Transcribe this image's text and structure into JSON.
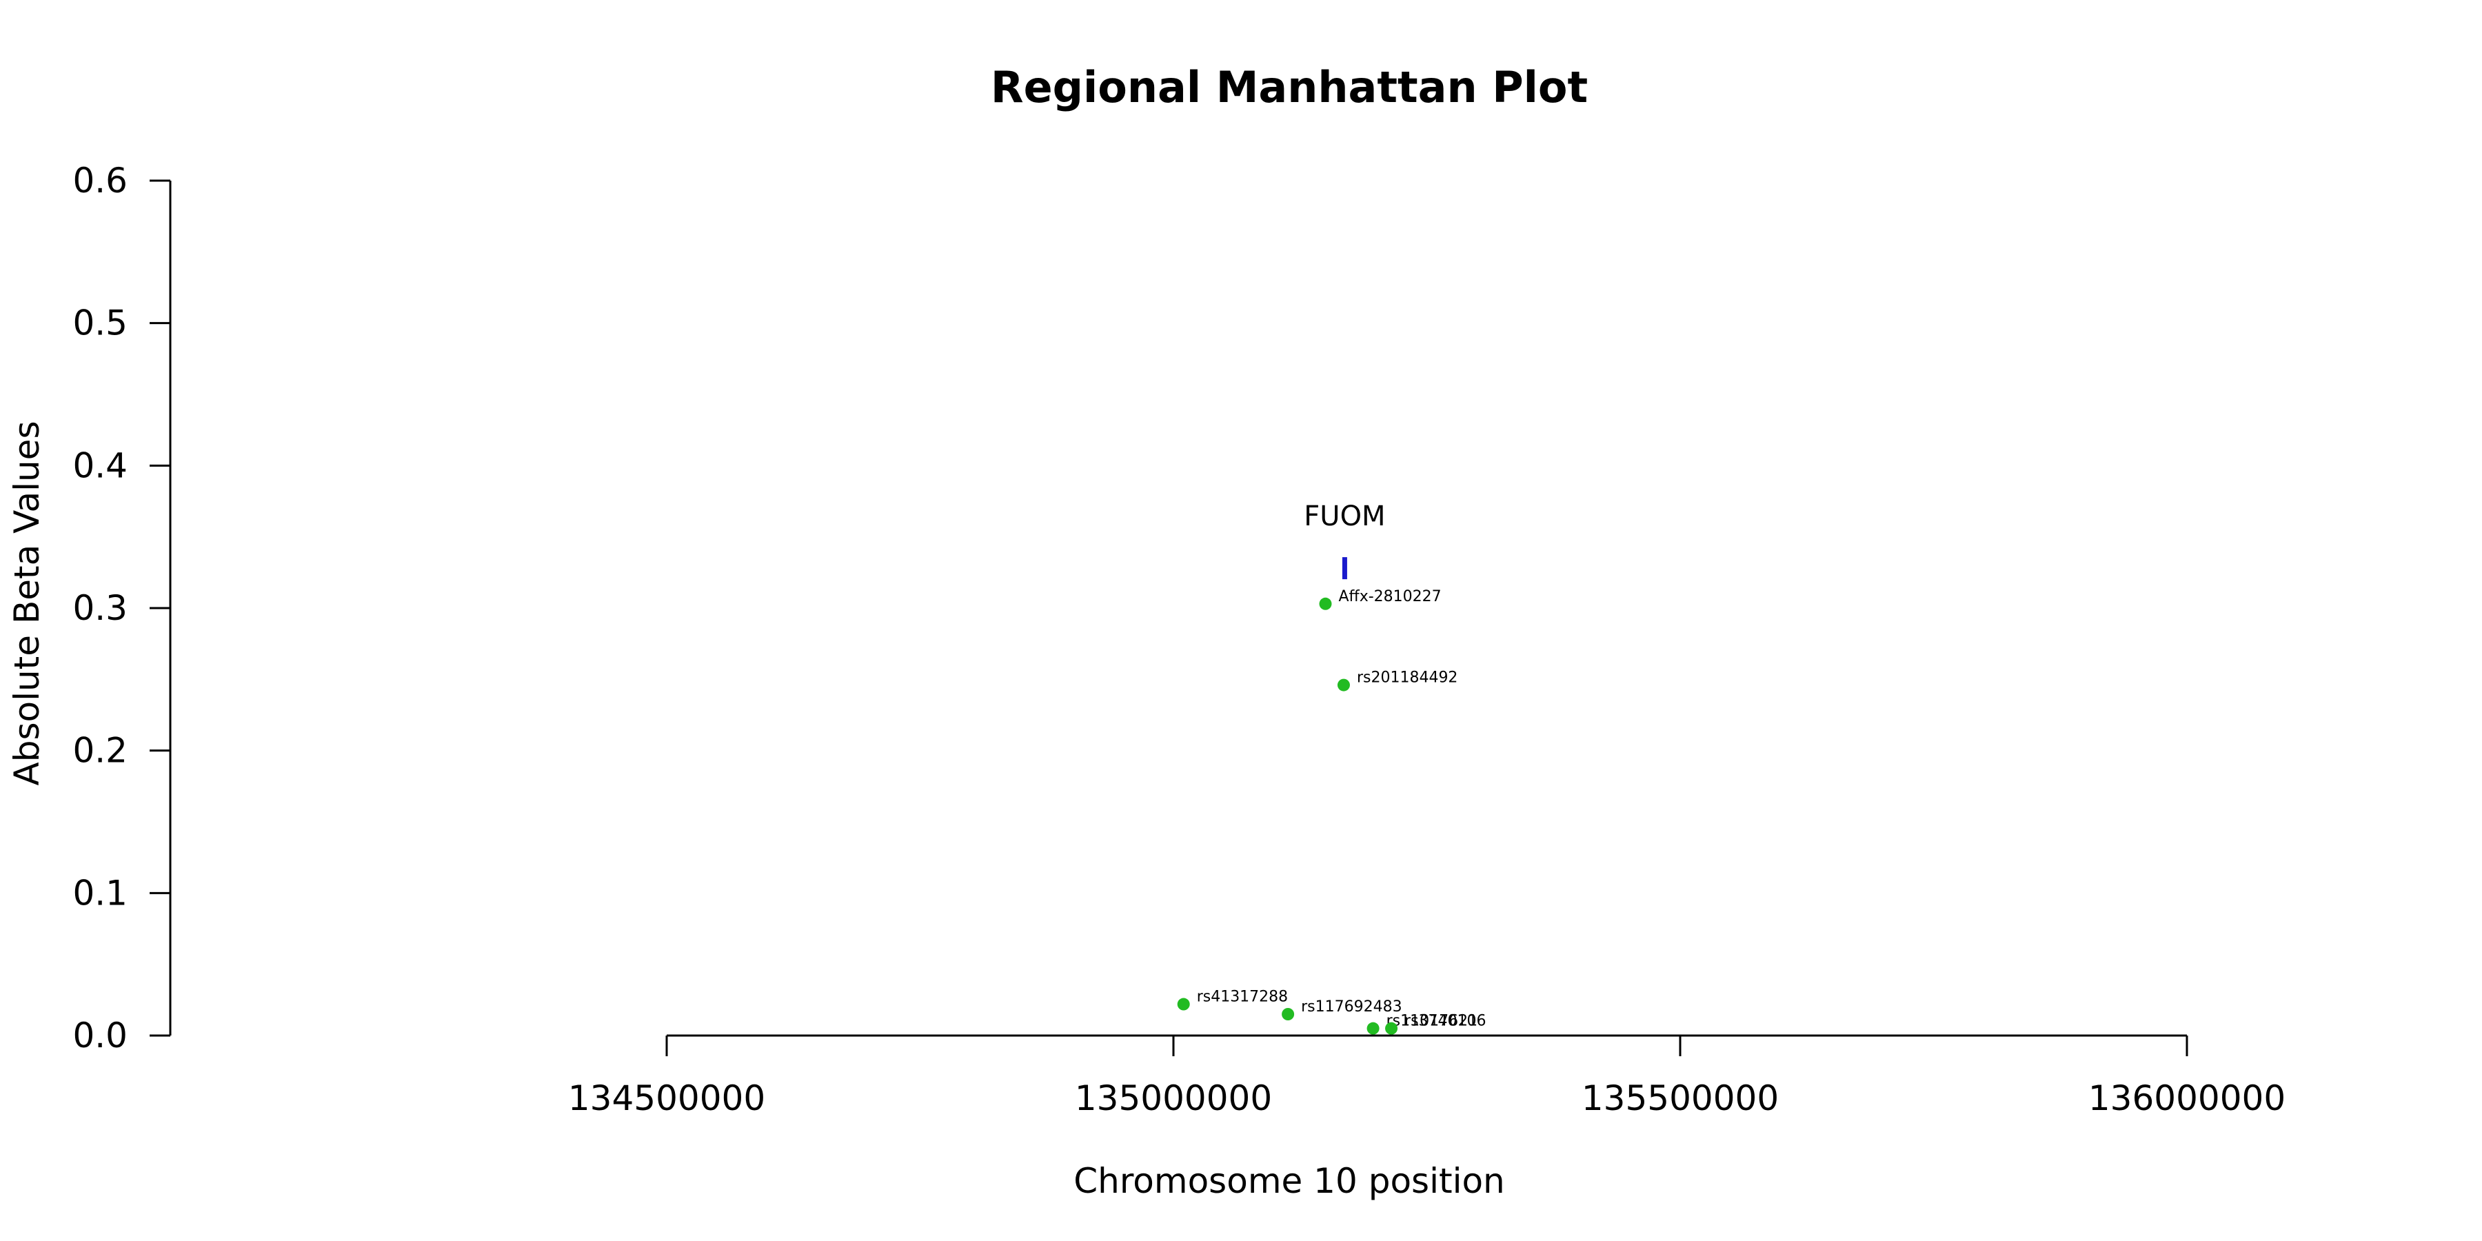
{
  "chart_data": {
    "type": "scatter",
    "title": "Regional Manhattan Plot",
    "xlabel": "Chromosome 10 position",
    "ylabel": "Absolute Beta Values",
    "xlim": [
      134500000,
      136000000
    ],
    "ylim": [
      0,
      0.6
    ],
    "x_ticks": [
      134500000,
      135000000,
      135500000,
      136000000
    ],
    "x_tick_labels": [
      "134500000",
      "135000000",
      "135500000",
      "136000000"
    ],
    "y_ticks": [
      0.0,
      0.1,
      0.2,
      0.3,
      0.4,
      0.5,
      0.6
    ],
    "y_tick_labels": [
      "0.0",
      "0.1",
      "0.2",
      "0.3",
      "0.4",
      "0.5",
      "0.6"
    ],
    "grid": false,
    "point_color": "#22bb22",
    "gene_color": "#1a1acc",
    "points": [
      {
        "label": "Affx-2810227",
        "x": 135150000,
        "y": 0.303
      },
      {
        "label": "rs201184492",
        "x": 135168000,
        "y": 0.246
      },
      {
        "label": "rs41317288",
        "x": 135010000,
        "y": 0.022
      },
      {
        "label": "rs117692483",
        "x": 135113000,
        "y": 0.015
      },
      {
        "label": "rs11017621",
        "x": 135197000,
        "y": 0.005
      },
      {
        "label": "rs3740106",
        "x": 135215000,
        "y": 0.005
      }
    ],
    "genes": [
      {
        "name": "FUOM",
        "x": 135169000,
        "y": 0.328
      }
    ]
  }
}
